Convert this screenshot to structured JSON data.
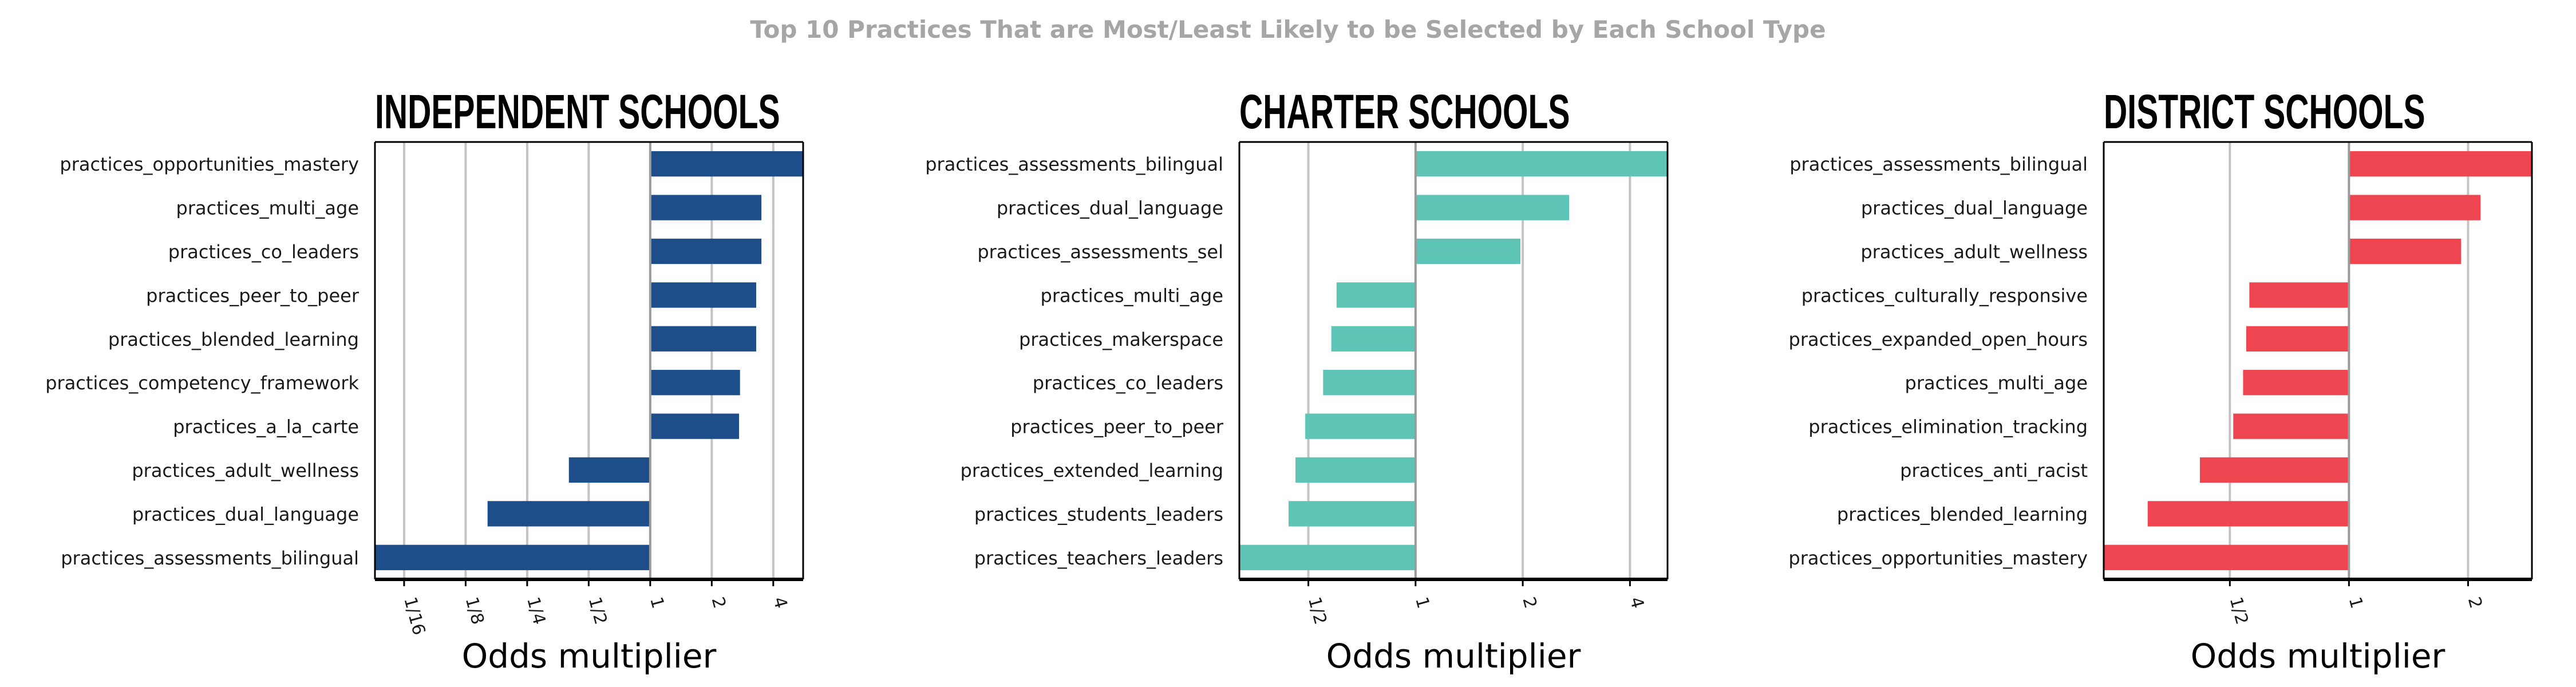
{
  "title": "Top 10 Practices That are Most/Least Likely to be Selected by Each School Type",
  "chart_data": [
    {
      "type": "bar",
      "orientation": "horizontal",
      "scale": "log2",
      "title": "INDEPENDENT SCHOOLS",
      "xlabel": "Odds multiplier",
      "ylabel": "",
      "xlim": [
        0.045,
        5.6
      ],
      "xticks": [
        0.0625,
        0.125,
        0.25,
        0.5,
        1,
        2,
        4
      ],
      "xticklabels": [
        "1/16",
        "1/8",
        "1/4",
        "1/2",
        "1",
        "2",
        "4"
      ],
      "grid": true,
      "color": "#1d4e89",
      "categories": [
        "practices_opportunities_mastery",
        "practices_multi_age",
        "practices_co_leaders",
        "practices_peer_to_peer",
        "practices_blended_learning",
        "practices_competency_framework",
        "practices_a_la_carte",
        "practices_adult_wellness",
        "practices_dual_language",
        "practices_assessments_bilingual"
      ],
      "values": [
        5.6,
        3.5,
        3.5,
        3.3,
        3.3,
        2.75,
        2.72,
        0.4,
        0.16,
        0.045
      ]
    },
    {
      "type": "bar",
      "orientation": "horizontal",
      "scale": "log2",
      "title": "CHARTER SCHOOLS",
      "xlabel": "Odds multiplier",
      "ylabel": "",
      "xlim": [
        0.32,
        5.1
      ],
      "xticks": [
        0.5,
        1,
        2,
        4
      ],
      "xticklabels": [
        "1/2",
        "1",
        "2",
        "4"
      ],
      "grid": true,
      "color": "#5ec4b5",
      "categories": [
        "practices_assessments_bilingual",
        "practices_dual_language",
        "practices_assessments_sel",
        "practices_multi_age",
        "practices_makerspace",
        "practices_co_leaders",
        "practices_peer_to_peer",
        "practices_extended_learning",
        "practices_students_leaders",
        "practices_teachers_leaders"
      ],
      "values": [
        5.1,
        2.7,
        1.97,
        0.6,
        0.58,
        0.55,
        0.49,
        0.46,
        0.44,
        0.32
      ]
    },
    {
      "type": "bar",
      "orientation": "horizontal",
      "scale": "log2",
      "title": "DISTRICT SCHOOLS",
      "xlabel": "Odds multiplier",
      "ylabel": "",
      "xlim": [
        0.24,
        2.9
      ],
      "xticks": [
        0.5,
        1,
        2
      ],
      "xticklabels": [
        "1/2",
        "1",
        "2"
      ],
      "grid": true,
      "color": "#ef4550",
      "categories": [
        "practices_assessments_bilingual",
        "practices_dual_language",
        "practices_adult_wellness",
        "practices_culturally_responsive",
        "practices_expanded_open_hours",
        "practices_multi_age",
        "practices_elimination_tracking",
        "practices_anti_racist",
        "practices_blended_learning",
        "practices_opportunities_mastery"
      ],
      "values": [
        2.9,
        2.15,
        1.92,
        0.56,
        0.55,
        0.54,
        0.51,
        0.42,
        0.31,
        0.24
      ]
    }
  ]
}
